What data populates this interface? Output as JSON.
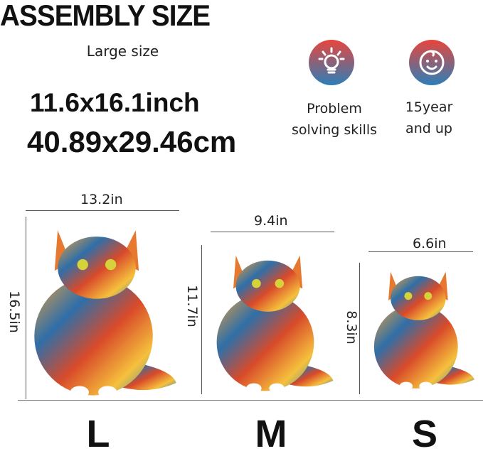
{
  "title": "ASSEMBLY SIZE",
  "size_label": "Large size",
  "dimensions": {
    "inch": "11.6x16.1inch",
    "cm": "40.89x29.46cm"
  },
  "features": [
    {
      "icon": "lightbulb-icon",
      "line1": "Problem",
      "line2": "solving skills"
    },
    {
      "icon": "baby-face-icon",
      "line1": "15year",
      "line2": "and up"
    }
  ],
  "colors": {
    "icon_gradient_top": "#e8453c",
    "icon_gradient_bottom": "#2c7fb8"
  },
  "sizes": [
    {
      "letter": "L",
      "width": "13.2in",
      "height": "16.5in"
    },
    {
      "letter": "M",
      "width": "9.4in",
      "height": "11.7in"
    },
    {
      "letter": "S",
      "width": "6.6in",
      "height": "8.3in"
    }
  ]
}
